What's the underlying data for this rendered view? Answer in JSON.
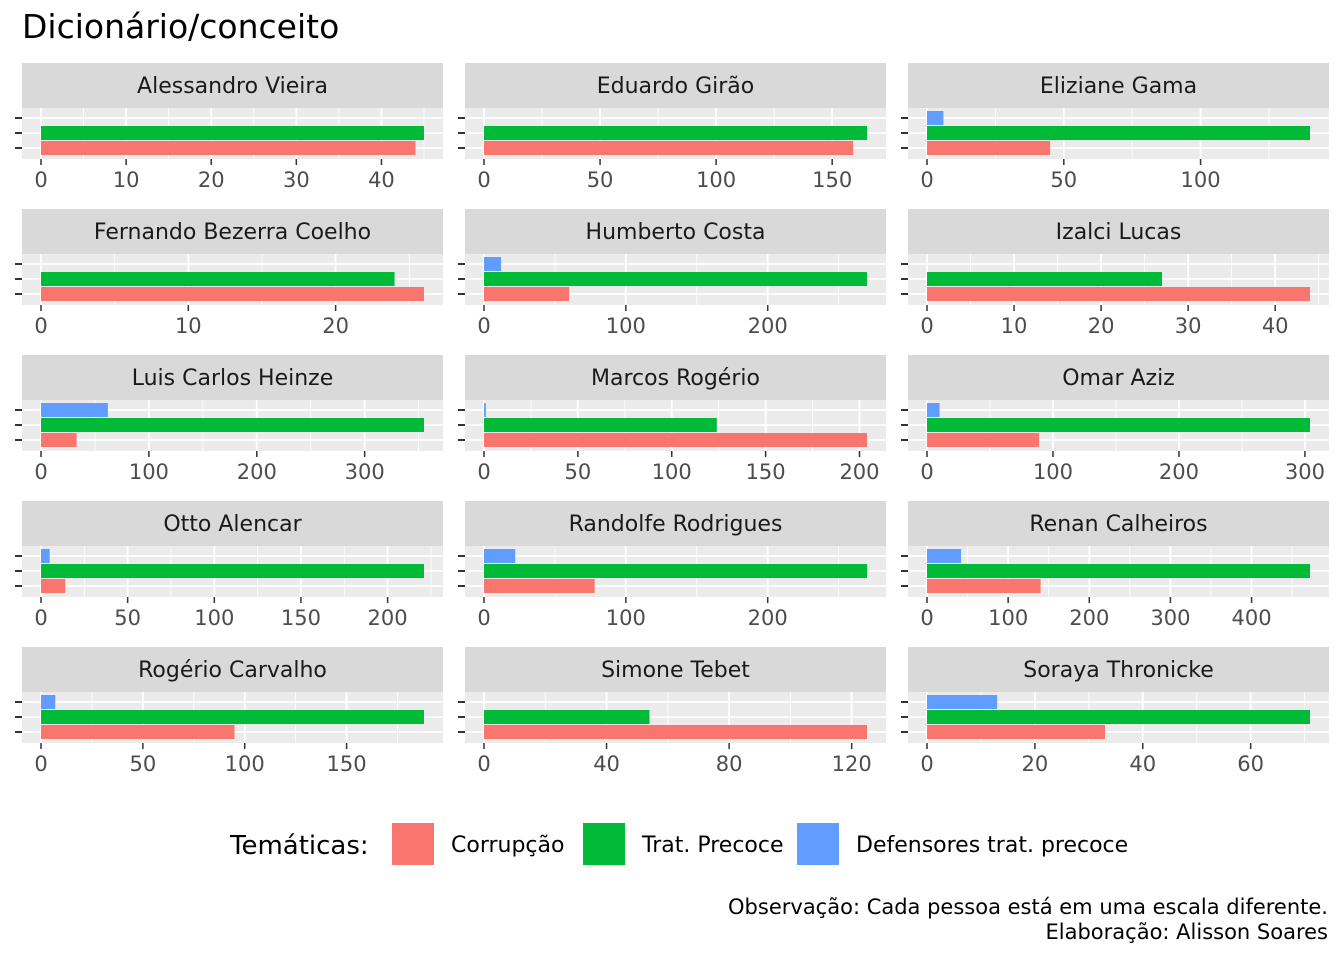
{
  "chart_data": {
    "type": "bar",
    "orientation": "horizontal",
    "title": "Dicionário/conceito",
    "facet_layout": "5 rows x 3 columns, free x scales",
    "grid": true,
    "legend": {
      "title": "Temáticas:",
      "placement": "bottom",
      "entries": [
        "Corrupção",
        "Trat. Precoce",
        "Defensores trat. precoce"
      ]
    },
    "colors": {
      "Corrupção": "#F8766D",
      "Trat. Precoce": "#00BA38",
      "Defensores trat. precoce": "#619CFF",
      "panel_background": "#EBEBEB",
      "strip_background": "#D9D9D9",
      "grid_line": "#FFFFFF"
    },
    "caption": [
      "Observação: Cada pessoa está em uma escala diferente.",
      "Elaboração: Alisson Soares"
    ],
    "panels": [
      {
        "name": "Alessandro Vieira",
        "xmax": 45,
        "ticks": [
          "0",
          "10",
          "20",
          "30",
          "40"
        ],
        "tick_values": [
          0,
          10,
          20,
          30,
          40
        ],
        "values": {
          "Corrupção": 44,
          "Trat. Precoce": 45,
          "Defensores trat. precoce": 0
        }
      },
      {
        "name": "Eduardo Girão",
        "xmax": 165,
        "ticks": [
          "0",
          "50",
          "100",
          "150"
        ],
        "tick_values": [
          0,
          50,
          100,
          150
        ],
        "values": {
          "Corrupção": 159,
          "Trat. Precoce": 165,
          "Defensores trat. precoce": 0
        }
      },
      {
        "name": "Eliziane Gama",
        "xmax": 140,
        "ticks": [
          "0",
          "50",
          "100"
        ],
        "tick_values": [
          0,
          50,
          100
        ],
        "values": {
          "Corrupção": 45,
          "Trat. Precoce": 140,
          "Defensores trat. precoce": 6
        }
      },
      {
        "name": "Fernando Bezerra Coelho",
        "xmax": 26,
        "ticks": [
          "0",
          "10",
          "20"
        ],
        "tick_values": [
          0,
          10,
          20
        ],
        "values": {
          "Corrupção": 26,
          "Trat. Precoce": 24,
          "Defensores trat. precoce": 0
        }
      },
      {
        "name": "Humberto Costa",
        "xmax": 270,
        "ticks": [
          "0",
          "100",
          "200"
        ],
        "tick_values": [
          0,
          100,
          200
        ],
        "values": {
          "Corrupção": 60,
          "Trat. Precoce": 270,
          "Defensores trat. precoce": 12
        }
      },
      {
        "name": "Izalci Lucas",
        "xmax": 44,
        "ticks": [
          "0",
          "10",
          "20",
          "30",
          "40"
        ],
        "tick_values": [
          0,
          10,
          20,
          30,
          40
        ],
        "values": {
          "Corrupção": 44,
          "Trat. Precoce": 27,
          "Defensores trat. precoce": 0
        }
      },
      {
        "name": "Luis Carlos Heinze",
        "xmax": 355,
        "ticks": [
          "0",
          "100",
          "200",
          "300"
        ],
        "tick_values": [
          0,
          100,
          200,
          300
        ],
        "values": {
          "Corrupção": 33,
          "Trat. Precoce": 355,
          "Defensores trat. precoce": 62
        }
      },
      {
        "name": "Marcos Rogério",
        "xmax": 204,
        "ticks": [
          "0",
          "50",
          "100",
          "150",
          "200"
        ],
        "tick_values": [
          0,
          50,
          100,
          150,
          200
        ],
        "values": {
          "Corrupção": 204,
          "Trat. Precoce": 124,
          "Defensores trat. precoce": 1
        }
      },
      {
        "name": "Omar Aziz",
        "xmax": 304,
        "ticks": [
          "0",
          "100",
          "200",
          "300"
        ],
        "tick_values": [
          0,
          100,
          200,
          300
        ],
        "values": {
          "Corrupção": 89,
          "Trat. Precoce": 304,
          "Defensores trat. precoce": 10
        }
      },
      {
        "name": "Otto Alencar",
        "xmax": 221,
        "ticks": [
          "0",
          "50",
          "100",
          "150",
          "200"
        ],
        "tick_values": [
          0,
          50,
          100,
          150,
          200
        ],
        "values": {
          "Corrupção": 14,
          "Trat. Precoce": 221,
          "Defensores trat. precoce": 5
        }
      },
      {
        "name": "Randolfe Rodrigues",
        "xmax": 270,
        "ticks": [
          "0",
          "100",
          "200"
        ],
        "tick_values": [
          0,
          100,
          200
        ],
        "values": {
          "Corrupção": 78,
          "Trat. Precoce": 270,
          "Defensores trat. precoce": 22
        }
      },
      {
        "name": "Renan Calheiros",
        "xmax": 472,
        "ticks": [
          "0",
          "100",
          "200",
          "300",
          "400"
        ],
        "tick_values": [
          0,
          100,
          200,
          300,
          400
        ],
        "values": {
          "Corrupção": 140,
          "Trat. Precoce": 472,
          "Defensores trat. precoce": 42
        }
      },
      {
        "name": "Rogério Carvalho",
        "xmax": 188,
        "ticks": [
          "0",
          "50",
          "100",
          "150"
        ],
        "tick_values": [
          0,
          50,
          100,
          150
        ],
        "values": {
          "Corrupção": 95,
          "Trat. Precoce": 188,
          "Defensores trat. precoce": 7
        }
      },
      {
        "name": "Simone Tebet",
        "xmax": 125,
        "ticks": [
          "0",
          "40",
          "80",
          "120"
        ],
        "tick_values": [
          0,
          40,
          80,
          120
        ],
        "values": {
          "Corrupção": 125,
          "Trat. Precoce": 54,
          "Defensores trat. precoce": 0
        }
      },
      {
        "name": "Soraya Thronicke",
        "xmax": 71,
        "ticks": [
          "0",
          "20",
          "40",
          "60"
        ],
        "tick_values": [
          0,
          20,
          40,
          60
        ],
        "values": {
          "Corrupção": 33,
          "Trat. Precoce": 71,
          "Defensores trat. precoce": 13
        }
      }
    ]
  }
}
